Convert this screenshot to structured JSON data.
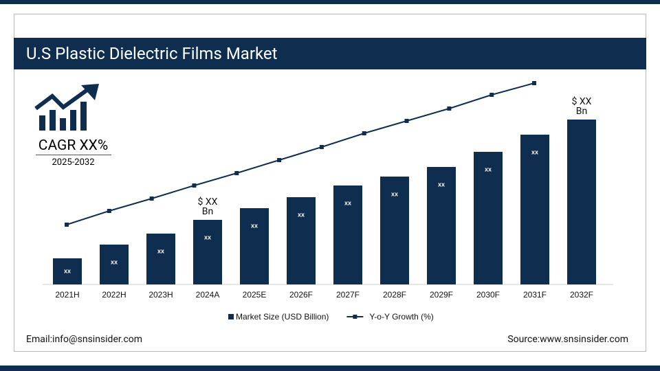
{
  "chart_data": {
    "type": "bar",
    "title": "U.S Plastic Dielectric Films Market",
    "categories": [
      "2021H",
      "2022H",
      "2023H",
      "2024A",
      "2025E",
      "2026F",
      "2027F",
      "2028F",
      "2029F",
      "2030F",
      "2031F",
      "2032F"
    ],
    "series": [
      {
        "name": "Market Size (USD Billion)",
        "type": "bar",
        "color": "#0f2d4f",
        "values": [
          38,
          58,
          74,
          94,
          111,
          127,
          144,
          157,
          171,
          193,
          218,
          240
        ]
      },
      {
        "name": "Y-o-Y Growth (%)",
        "type": "line",
        "color": "#0f2d4f",
        "values": [
          87,
          107,
          125,
          144,
          162,
          181,
          200,
          220,
          238,
          256,
          276,
          293
        ]
      }
    ],
    "bar_labels": [
      "xx",
      "xx",
      "xx",
      "xx",
      "xx",
      "xx",
      "xx",
      "xx",
      "xx",
      "xx",
      "xx",
      ""
    ],
    "annotations": [
      {
        "text": "$ XX Bn",
        "category": "2024A"
      },
      {
        "text": "$ XX Bn",
        "category": "2032F"
      }
    ],
    "cagr": {
      "text": "CAGR XX%",
      "period": "2025-2032"
    },
    "footer": {
      "email": "Email:info@snsinsider.com",
      "source": "Source:www.snsinsider.com"
    }
  }
}
